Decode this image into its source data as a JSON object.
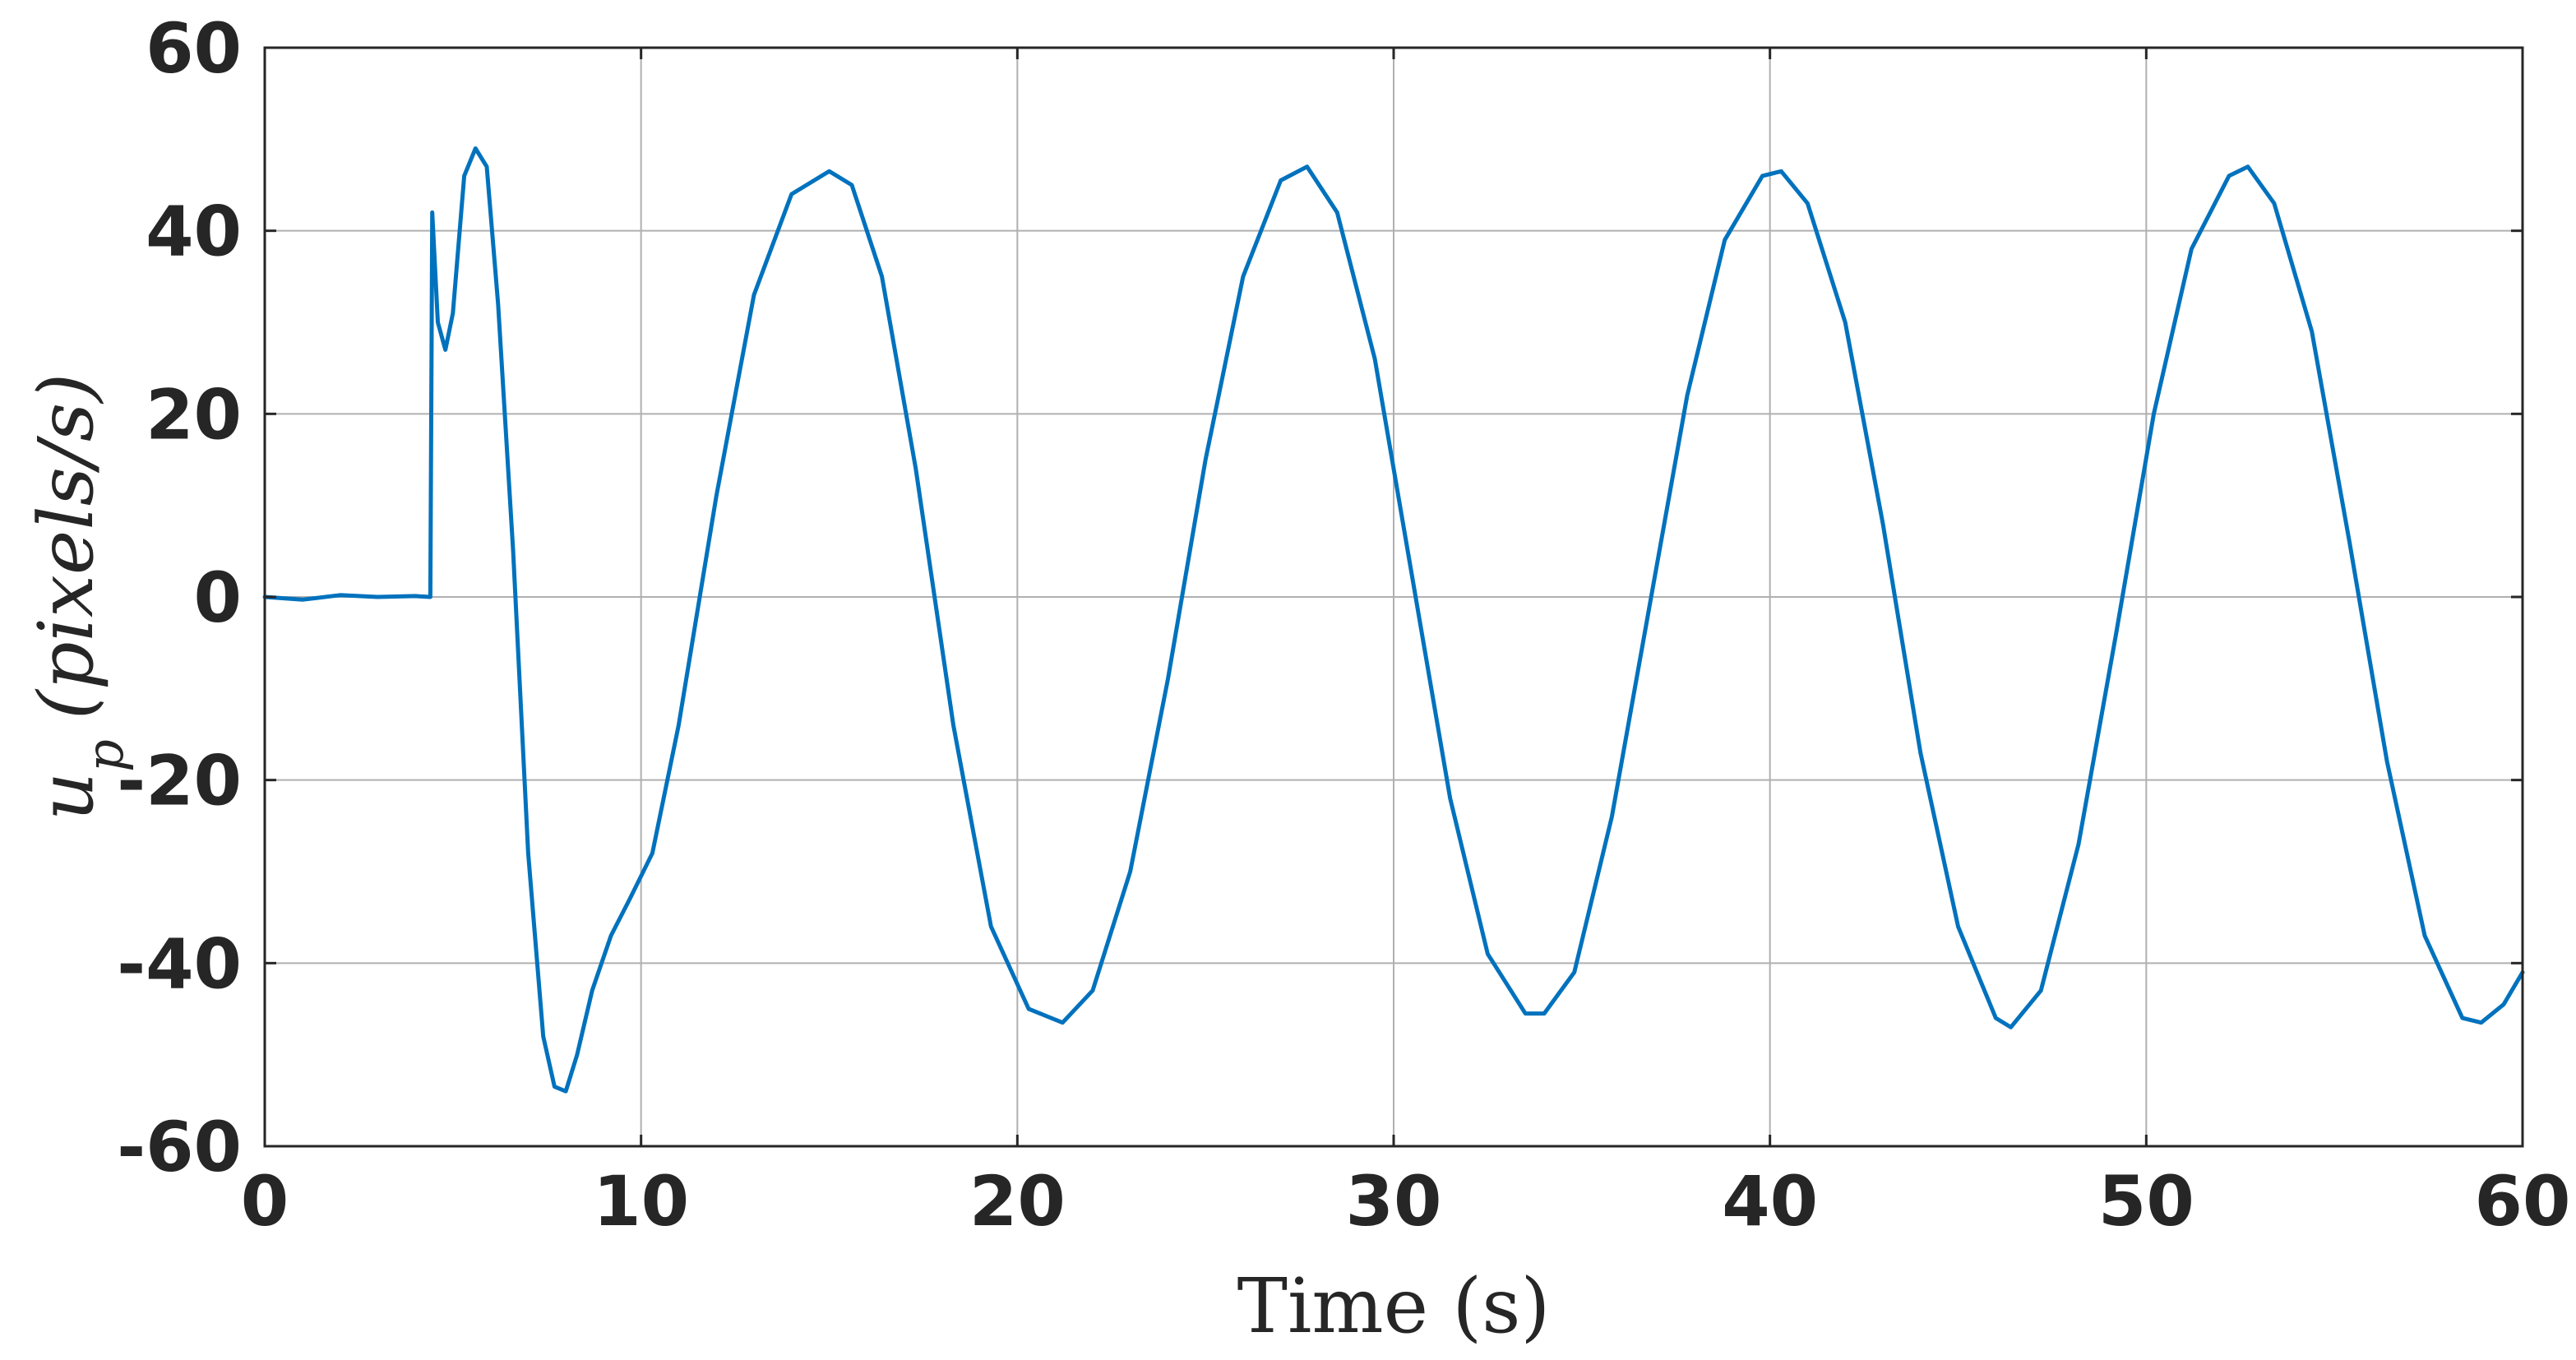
{
  "chart_data": {
    "type": "line",
    "title": "",
    "xlabel": "Time (s)",
    "ylabel_main": "u",
    "ylabel_sub": "p",
    "ylabel_unit": "(pixels/s)",
    "xlim": [
      0,
      60
    ],
    "ylim": [
      -60,
      60
    ],
    "xticks": [
      0,
      10,
      20,
      30,
      40,
      50,
      60
    ],
    "yticks": [
      -60,
      -40,
      -20,
      0,
      20,
      40,
      60
    ],
    "xtick_labels": [
      "0",
      "10",
      "20",
      "30",
      "40",
      "50",
      "60"
    ],
    "ytick_labels": [
      "-60",
      "-40",
      "-20",
      "0",
      "20",
      "40",
      "60"
    ],
    "grid": true,
    "series": [
      {
        "color": "#0072BD",
        "x": [
          0,
          1,
          2,
          3,
          4,
          4.4,
          4.45,
          4.6,
          4.8,
          5.0,
          5.3,
          5.6,
          5.9,
          6.2,
          6.6,
          7.0,
          7.4,
          7.7,
          8.0,
          8.3,
          8.7,
          9.2,
          9.7,
          10.3,
          11.0,
          12.0,
          13.0,
          14.0,
          15.0,
          15.6,
          16.4,
          17.3,
          18.3,
          19.3,
          20.3,
          21.2,
          22.0,
          23.0,
          24.0,
          25.0,
          26.0,
          27.0,
          27.7,
          28.5,
          29.5,
          30.5,
          31.5,
          32.5,
          33.5,
          34.0,
          34.8,
          35.8,
          36.8,
          37.8,
          38.8,
          39.8,
          40.3,
          41.0,
          42.0,
          43.0,
          44.0,
          45.0,
          46.0,
          46.4,
          47.2,
          48.2,
          49.2,
          50.2,
          51.2,
          52.2,
          52.7,
          53.4,
          54.4,
          55.4,
          56.4,
          57.4,
          58.4,
          58.9,
          59.5,
          60.0
        ],
        "y": [
          0,
          -0.3,
          0.2,
          0,
          0.1,
          0,
          42,
          30,
          27,
          31,
          46,
          49,
          47,
          32,
          5,
          -28,
          -48,
          -53.5,
          -54,
          -50,
          -43,
          -37,
          -33,
          -28,
          -14,
          11,
          33,
          44,
          46.5,
          45,
          35,
          14,
          -14,
          -36,
          -45,
          -46.5,
          -43,
          -30,
          -9,
          15,
          35,
          45.5,
          47,
          42,
          26,
          2,
          -22,
          -39,
          -45.5,
          -45.5,
          -41,
          -24,
          -1,
          22,
          39,
          46,
          46.5,
          43,
          30,
          8,
          -17,
          -36,
          -46,
          -47,
          -43,
          -27,
          -4,
          20,
          38,
          46,
          47,
          43,
          29,
          6,
          -18,
          -37,
          -46,
          -46.5,
          -44.5,
          -41
        ]
      }
    ]
  }
}
